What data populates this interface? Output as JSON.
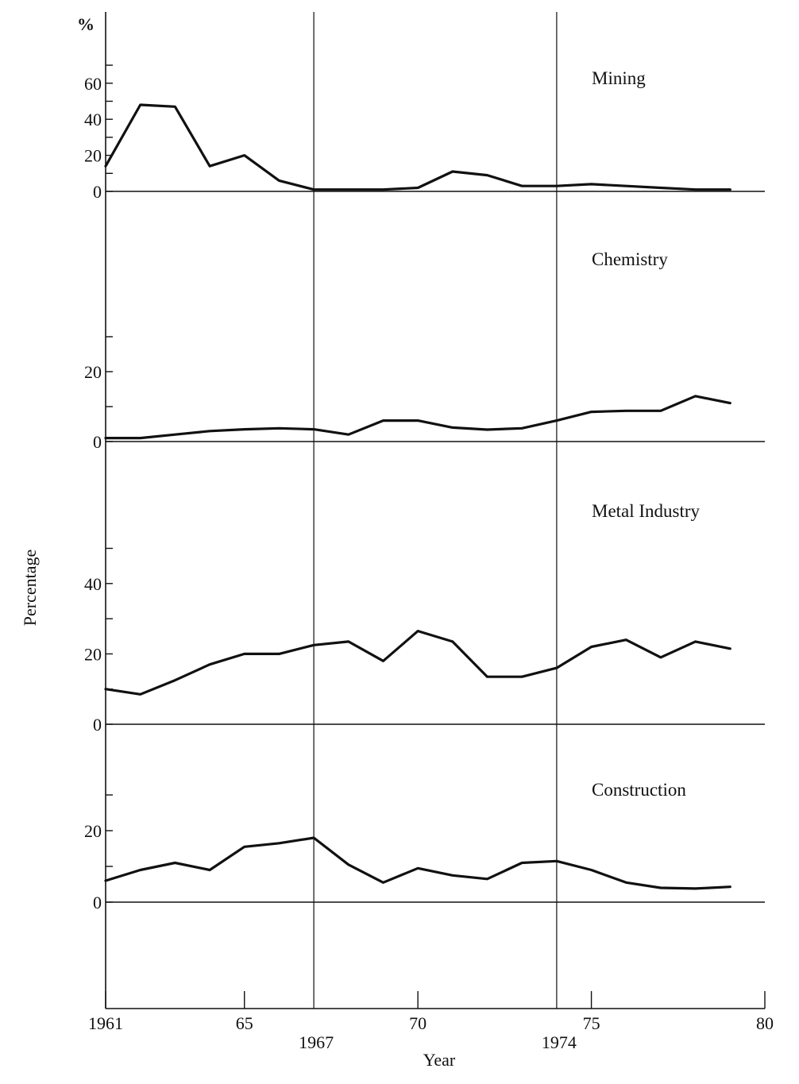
{
  "chart_data": {
    "type": "line",
    "ylabel": "Percentage",
    "xlabel": "Year",
    "y_unit_label": "%",
    "x_ticks": [
      "1961",
      "65",
      "70",
      "75",
      "80"
    ],
    "reference_years": [
      "1967",
      "1974"
    ],
    "x": [
      1961,
      1962,
      1963,
      1964,
      1965,
      1966,
      1967,
      1968,
      1969,
      1970,
      1971,
      1972,
      1973,
      1974,
      1975,
      1976,
      1977,
      1978,
      1979
    ],
    "panels": [
      {
        "title": "Mining",
        "y_ticks": [
          "0",
          "20",
          "40",
          "60"
        ],
        "values": [
          14,
          48,
          47,
          14,
          20,
          6,
          1,
          1,
          1,
          2,
          11,
          9,
          3,
          3,
          4,
          3,
          2,
          1,
          1
        ]
      },
      {
        "title": "Chemistry",
        "y_ticks": [
          "0",
          "20"
        ],
        "values": [
          1,
          1,
          2,
          3,
          3.5,
          3.8,
          3.5,
          2,
          6,
          6,
          4,
          3.4,
          3.8,
          6,
          8.5,
          8.8,
          8.8,
          13,
          11
        ]
      },
      {
        "title": "Metal Industry",
        "y_ticks": [
          "0",
          "20",
          "40"
        ],
        "values": [
          10,
          8.5,
          12.5,
          17,
          20,
          20,
          22.5,
          23.5,
          18,
          26.5,
          23.5,
          13.5,
          13.5,
          16,
          22,
          24,
          19,
          23.5,
          21.5
        ]
      },
      {
        "title": "Construction",
        "y_ticks": [
          "0",
          "20"
        ],
        "values": [
          6,
          9,
          11,
          9,
          15.5,
          16.5,
          18,
          10.5,
          5.5,
          9.5,
          7.5,
          6.5,
          11,
          11.5,
          9,
          5.5,
          4,
          3.8,
          4.3
        ]
      }
    ]
  }
}
